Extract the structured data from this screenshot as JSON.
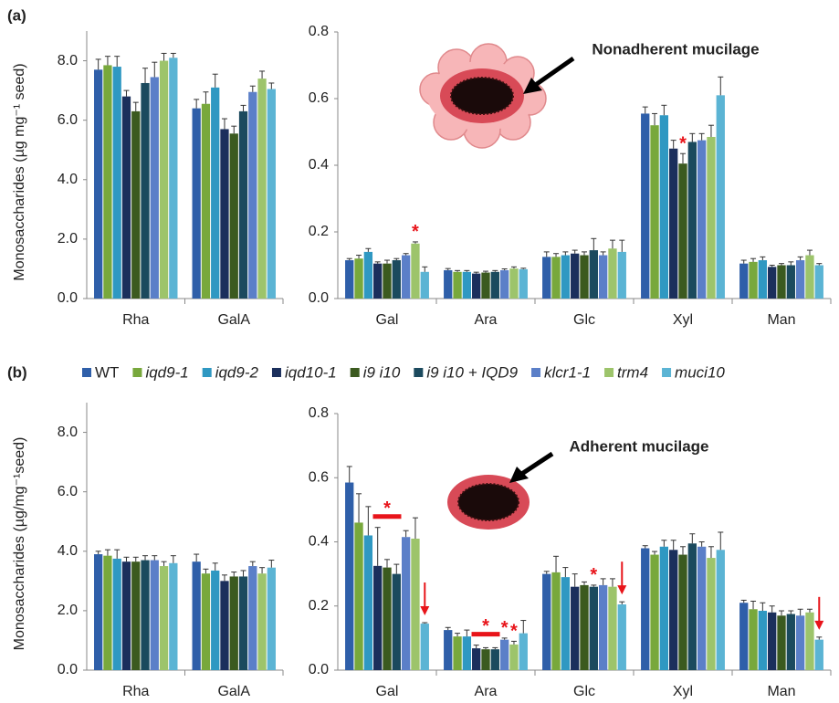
{
  "legend": [
    {
      "name": "WT",
      "color": "#2f5fa9"
    },
    {
      "name": "iqd9-1",
      "color": "#78a83c"
    },
    {
      "name": "iqd9-2",
      "color": "#2f98c2"
    },
    {
      "name": "iqd10-1",
      "color": "#1b2f5c"
    },
    {
      "name": "i9 i10",
      "color": "#3b5a1f"
    },
    {
      "name": "i9 i10 + IQD9",
      "color": "#1b4a5e"
    },
    {
      "name": "klcr1-1",
      "color": "#5b7fc8"
    },
    {
      "name": "trm4",
      "color": "#9dc46b"
    },
    {
      "name": "muci10",
      "color": "#5bb4d4"
    }
  ],
  "chart_data": [
    {
      "type": "bar",
      "panel": "(a)",
      "ylabel": "Monosaccharides (µg mg⁻¹ seed)",
      "categories": [
        "Rha",
        "GalA"
      ],
      "ylim": [
        0,
        9
      ],
      "yticks": [
        {
          "value": 0,
          "label": "0.0"
        },
        {
          "value": 2,
          "label": "2.0"
        },
        {
          "value": 4,
          "label": "4.0"
        },
        {
          "value": 6,
          "label": "6.0"
        },
        {
          "value": 8,
          "label": "8.0"
        }
      ],
      "series": [
        {
          "values": [
            7.7,
            6.4
          ],
          "errors": [
            0.35,
            0.3
          ]
        },
        {
          "values": [
            7.85,
            6.55
          ],
          "errors": [
            0.3,
            0.4
          ]
        },
        {
          "values": [
            7.8,
            7.1
          ],
          "errors": [
            0.35,
            0.45
          ]
        },
        {
          "values": [
            6.8,
            5.7
          ],
          "errors": [
            0.2,
            0.35
          ]
        },
        {
          "values": [
            6.3,
            5.55
          ],
          "errors": [
            0.3,
            0.25
          ]
        },
        {
          "values": [
            7.25,
            6.3
          ],
          "errors": [
            0.5,
            0.2
          ]
        },
        {
          "values": [
            7.45,
            6.95
          ],
          "errors": [
            0.5,
            0.2
          ]
        },
        {
          "values": [
            8.0,
            7.4
          ],
          "errors": [
            0.25,
            0.25
          ]
        },
        {
          "values": [
            8.1,
            7.05
          ],
          "errors": [
            0.15,
            0.2
          ]
        }
      ]
    },
    {
      "type": "bar",
      "annotation": "Nonadherent mucilage",
      "categories": [
        "Gal",
        "Ara",
        "Glc",
        "Xyl",
        "Man"
      ],
      "ylim": [
        0,
        0.8
      ],
      "yticks": [
        {
          "value": 0,
          "label": "0.0"
        },
        0.2,
        0.4,
        0.6,
        0.8
      ],
      "series": [
        {
          "values": [
            0.115,
            0.085,
            0.125,
            0.555,
            0.105
          ],
          "errors": [
            0.005,
            0.005,
            0.015,
            0.02,
            0.01
          ]
        },
        {
          "values": [
            0.12,
            0.08,
            0.125,
            0.52,
            0.11
          ],
          "errors": [
            0.01,
            0.004,
            0.01,
            0.035,
            0.01
          ]
        },
        {
          "values": [
            0.14,
            0.08,
            0.13,
            0.55,
            0.115
          ],
          "errors": [
            0.01,
            0.004,
            0.01,
            0.03,
            0.01
          ]
        },
        {
          "values": [
            0.105,
            0.075,
            0.135,
            0.45,
            0.095
          ],
          "errors": [
            0.005,
            0.004,
            0.01,
            0.025,
            0.005
          ]
        },
        {
          "values": [
            0.105,
            0.078,
            0.13,
            0.405,
            0.1
          ],
          "errors": [
            0.01,
            0.004,
            0.01,
            0.03,
            0.005
          ]
        },
        {
          "values": [
            0.115,
            0.08,
            0.145,
            0.47,
            0.1
          ],
          "errors": [
            0.005,
            0.004,
            0.035,
            0.025,
            0.01
          ]
        },
        {
          "values": [
            0.13,
            0.085,
            0.13,
            0.475,
            0.115
          ],
          "errors": [
            0.005,
            0.004,
            0.01,
            0.02,
            0.01
          ]
        },
        {
          "values": [
            0.165,
            0.09,
            0.15,
            0.485,
            0.13
          ],
          "errors": [
            0.005,
            0.005,
            0.025,
            0.035,
            0.015
          ]
        },
        {
          "values": [
            0.08,
            0.088,
            0.14,
            0.61,
            0.1
          ],
          "errors": [
            0.015,
            0.003,
            0.035,
            0.055,
            0.005
          ]
        }
      ],
      "markers": [
        {
          "text": "*",
          "category": "Gal",
          "series": "trm4"
        },
        {
          "text": "*",
          "category": "Xyl",
          "series": "i9 i10"
        }
      ]
    },
    {
      "type": "bar",
      "panel": "(b)",
      "ylabel": "Monosaccharides (µg/mg⁻¹seed)",
      "categories": [
        "Rha",
        "GalA"
      ],
      "ylim": [
        0,
        9
      ],
      "yticks": [
        {
          "value": 0,
          "label": "0.0"
        },
        {
          "value": 2,
          "label": "2.0"
        },
        {
          "value": 4,
          "label": "4.0"
        },
        {
          "value": 6,
          "label": "6.0"
        },
        {
          "value": 8,
          "label": "8.0"
        }
      ],
      "series": [
        {
          "values": [
            3.9,
            3.65
          ],
          "errors": [
            0.1,
            0.25
          ]
        },
        {
          "values": [
            3.85,
            3.25
          ],
          "errors": [
            0.2,
            0.15
          ]
        },
        {
          "values": [
            3.75,
            3.35
          ],
          "errors": [
            0.3,
            0.25
          ]
        },
        {
          "values": [
            3.65,
            3.0
          ],
          "errors": [
            0.15,
            0.2
          ]
        },
        {
          "values": [
            3.65,
            3.15
          ],
          "errors": [
            0.15,
            0.15
          ]
        },
        {
          "values": [
            3.7,
            3.15
          ],
          "errors": [
            0.15,
            0.2
          ]
        },
        {
          "values": [
            3.7,
            3.5
          ],
          "errors": [
            0.15,
            0.15
          ]
        },
        {
          "values": [
            3.5,
            3.25
          ],
          "errors": [
            0.15,
            0.2
          ]
        },
        {
          "values": [
            3.6,
            3.45
          ],
          "errors": [
            0.25,
            0.25
          ]
        }
      ]
    },
    {
      "type": "bar",
      "annotation": "Adherent mucilage",
      "categories": [
        "Gal",
        "Ara",
        "Glc",
        "Xyl",
        "Man"
      ],
      "ylim": [
        0,
        0.8
      ],
      "yticks": [
        {
          "value": 0,
          "label": "0.0"
        },
        0.2,
        0.4,
        0.6,
        0.8
      ],
      "series": [
        {
          "values": [
            0.585,
            0.125,
            0.3,
            0.38,
            0.21
          ],
          "errors": [
            0.05,
            0.008,
            0.008,
            0.008,
            0.008
          ]
        },
        {
          "values": [
            0.46,
            0.105,
            0.305,
            0.36,
            0.19
          ],
          "errors": [
            0.09,
            0.01,
            0.05,
            0.01,
            0.025
          ]
        },
        {
          "values": [
            0.42,
            0.105,
            0.29,
            0.385,
            0.185
          ],
          "errors": [
            0.09,
            0.02,
            0.03,
            0.02,
            0.025
          ]
        },
        {
          "values": [
            0.325,
            0.068,
            0.26,
            0.375,
            0.18
          ],
          "errors": [
            0.12,
            0.01,
            0.04,
            0.03,
            0.02
          ]
        },
        {
          "values": [
            0.32,
            0.065,
            0.265,
            0.36,
            0.17
          ],
          "errors": [
            0.025,
            0.005,
            0.01,
            0.025,
            0.015
          ]
        },
        {
          "values": [
            0.3,
            0.065,
            0.26,
            0.395,
            0.175
          ],
          "errors": [
            0.03,
            0.005,
            0.005,
            0.03,
            0.01
          ]
        },
        {
          "values": [
            0.415,
            0.095,
            0.265,
            0.385,
            0.17
          ],
          "errors": [
            0.02,
            0.005,
            0.02,
            0.015,
            0.02
          ]
        },
        {
          "values": [
            0.41,
            0.08,
            0.26,
            0.35,
            0.18
          ],
          "errors": [
            0.065,
            0.01,
            0.025,
            0.035,
            0.01
          ]
        },
        {
          "values": [
            0.145,
            0.115,
            0.205,
            0.375,
            0.095
          ],
          "errors": [
            0.003,
            0.04,
            0.008,
            0.055,
            0.008
          ]
        }
      ],
      "markers": [
        {
          "text": "*",
          "category": "Gal",
          "series": [
            "iqd10-1",
            "i9 i10 + IQD9"
          ]
        },
        {
          "text": "*",
          "category": "Ara",
          "series": [
            "iqd10-1",
            "i9 i10 + IQD9"
          ]
        },
        {
          "text": "*",
          "category": "Ara",
          "series": "klcr1-1"
        },
        {
          "text": "*",
          "category": "Ara",
          "series": "trm4"
        },
        {
          "text": "*",
          "category": "Glc",
          "series": "i9 i10 + IQD9"
        }
      ]
    }
  ]
}
